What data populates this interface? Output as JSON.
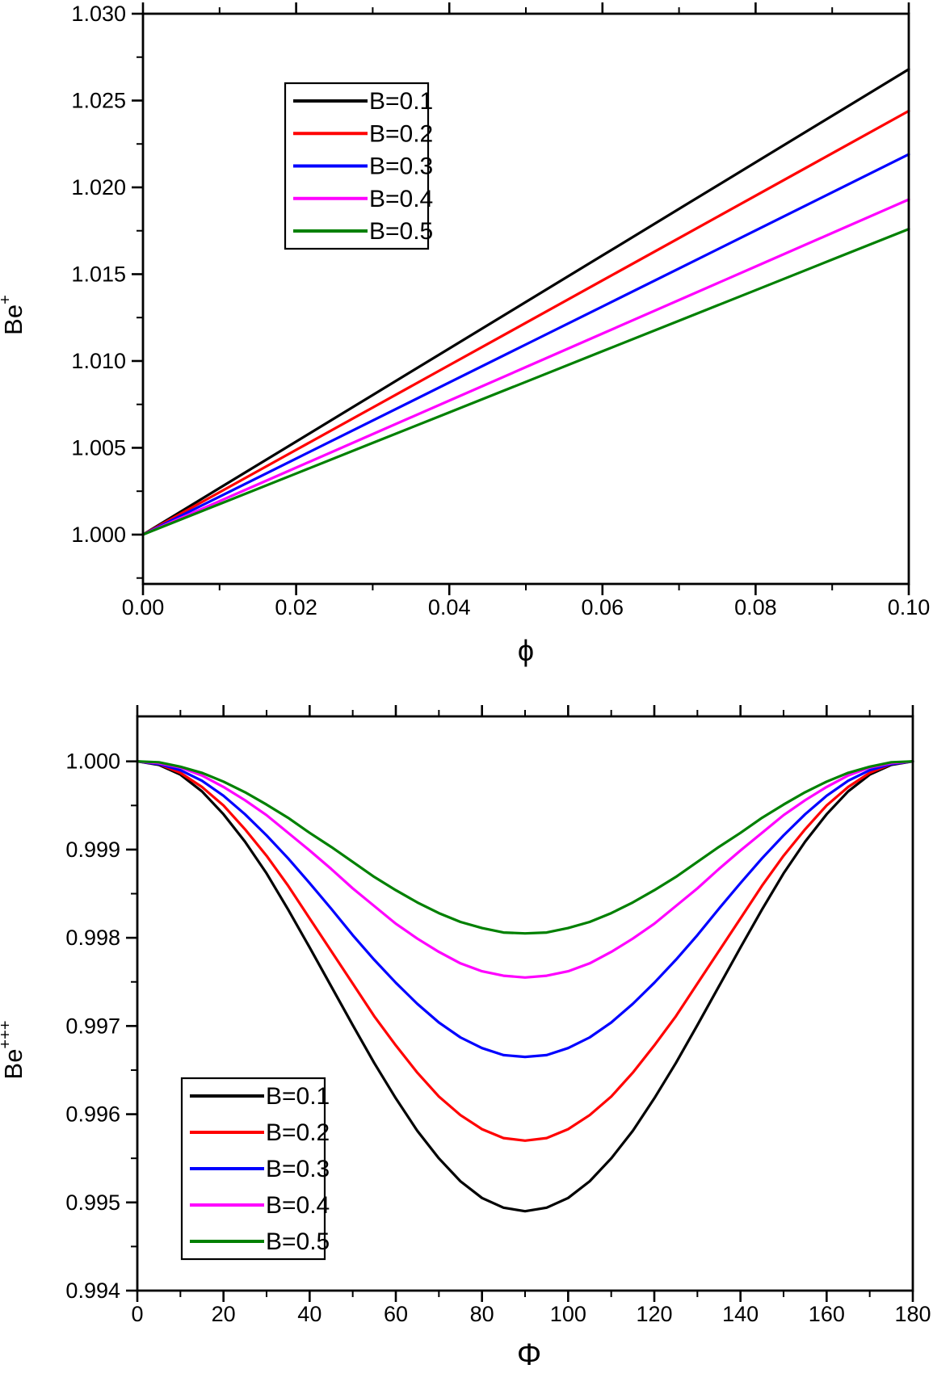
{
  "figure": {
    "background": "#ffffff",
    "text_color": "#000000",
    "series_colors": [
      "#000000",
      "#ff0000",
      "#0000ff",
      "#ff00ff",
      "#008000"
    ]
  },
  "chart_data": [
    {
      "type": "line",
      "title": "",
      "xlabel": "ϕ",
      "ylabel_base": "Be",
      "ylabel_sup": "+",
      "xlim": [
        0,
        0.1
      ],
      "ylim": [
        0.99716,
        1.03
      ],
      "grid": false,
      "legend_position": "upper-left",
      "x_ticks": {
        "values": [
          0,
          0.02,
          0.04,
          0.06,
          0.08,
          0.1
        ],
        "labels": [
          "0.00",
          "0.02",
          "0.04",
          "0.06",
          "0.08",
          "0.10"
        ],
        "minor": [
          0.01,
          0.03,
          0.05,
          0.07,
          0.09
        ]
      },
      "y_ticks": {
        "values": [
          1.0,
          1.005,
          1.01,
          1.015,
          1.02,
          1.025,
          1.03
        ],
        "labels": [
          "1.000",
          "1.005",
          "1.010",
          "1.015",
          "1.020",
          "1.025",
          "1.030"
        ],
        "minor": [
          0.9975,
          1.0025,
          1.0075,
          1.0125,
          1.0175,
          1.0225,
          1.0275
        ]
      },
      "x": [
        0,
        0.01,
        0.02,
        0.03,
        0.04,
        0.05,
        0.06,
        0.07,
        0.08,
        0.09,
        0.1
      ],
      "series": [
        {
          "name": "B=0.1",
          "color": "#000000",
          "values": [
            1.0,
            1.00268,
            1.00536,
            1.00804,
            1.01072,
            1.0134,
            1.01608,
            1.01876,
            1.02144,
            1.02412,
            1.0268
          ]
        },
        {
          "name": "B=0.2",
          "color": "#ff0000",
          "values": [
            1.0,
            1.00244,
            1.00488,
            1.00732,
            1.00976,
            1.0122,
            1.01464,
            1.01708,
            1.01952,
            1.02196,
            1.0244
          ]
        },
        {
          "name": "B=0.3",
          "color": "#0000ff",
          "values": [
            1.0,
            1.00219,
            1.00438,
            1.00657,
            1.00876,
            1.01095,
            1.01314,
            1.01533,
            1.01752,
            1.01971,
            1.0219
          ]
        },
        {
          "name": "B=0.4",
          "color": "#ff00ff",
          "values": [
            1.0,
            1.00193,
            1.00386,
            1.00579,
            1.00772,
            1.00965,
            1.01158,
            1.01351,
            1.01544,
            1.01737,
            1.0193
          ]
        },
        {
          "name": "B=0.5",
          "color": "#008000",
          "values": [
            1.0,
            1.00176,
            1.00352,
            1.00528,
            1.00704,
            1.0088,
            1.01056,
            1.01232,
            1.01408,
            1.01584,
            1.0176
          ]
        }
      ]
    },
    {
      "type": "line",
      "title": "",
      "xlabel": "Φ",
      "ylabel_base": "Be",
      "ylabel_sup": "+++",
      "xlim": [
        0,
        180
      ],
      "ylim": [
        0.994,
        1.00051
      ],
      "grid": false,
      "legend_position": "lower-left",
      "x_ticks": {
        "values": [
          0,
          20,
          40,
          60,
          80,
          100,
          120,
          140,
          160,
          180
        ],
        "labels": [
          "0",
          "20",
          "40",
          "60",
          "80",
          "100",
          "120",
          "140",
          "160",
          "180"
        ],
        "minor": [
          10,
          30,
          50,
          70,
          90,
          110,
          130,
          150,
          170
        ]
      },
      "y_ticks": {
        "values": [
          0.994,
          0.995,
          0.996,
          0.997,
          0.998,
          0.999,
          1.0
        ],
        "labels": [
          "0.994",
          "0.995",
          "0.996",
          "0.997",
          "0.998",
          "0.999",
          "1.000"
        ],
        "minor": [
          0.9945,
          0.9955,
          0.9965,
          0.9975,
          0.9985,
          0.9995
        ]
      },
      "x": [
        0,
        5,
        10,
        15,
        20,
        25,
        30,
        35,
        40,
        45,
        50,
        55,
        60,
        65,
        70,
        75,
        80,
        85,
        90,
        95,
        100,
        105,
        110,
        115,
        120,
        125,
        130,
        135,
        140,
        145,
        150,
        155,
        160,
        165,
        170,
        175,
        180
      ],
      "series": [
        {
          "name": "B=0.1",
          "color": "#000000",
          "values": [
            1.0,
            0.99996,
            0.99985,
            0.99966,
            0.9994,
            0.99909,
            0.99873,
            0.99832,
            0.99789,
            0.99745,
            0.99701,
            0.99658,
            0.99618,
            0.99581,
            0.9955,
            0.99524,
            0.99505,
            0.99494,
            0.9949,
            0.99494,
            0.99505,
            0.99524,
            0.9955,
            0.99581,
            0.99618,
            0.99658,
            0.99701,
            0.99745,
            0.99789,
            0.99832,
            0.99873,
            0.99909,
            0.9994,
            0.99966,
            0.99985,
            0.99996,
            1.0
          ]
        },
        {
          "name": "B=0.2",
          "color": "#ff0000",
          "values": [
            1.0,
            0.99997,
            0.99987,
            0.99971,
            0.9995,
            0.99923,
            0.99893,
            0.99859,
            0.99822,
            0.99785,
            0.99748,
            0.99711,
            0.99678,
            0.99647,
            0.9962,
            0.99599,
            0.99583,
            0.99573,
            0.9957,
            0.99573,
            0.99583,
            0.99599,
            0.9962,
            0.99647,
            0.99678,
            0.99711,
            0.99748,
            0.99785,
            0.99822,
            0.99859,
            0.99893,
            0.99923,
            0.9995,
            0.99971,
            0.99987,
            0.99997,
            1.0
          ]
        },
        {
          "name": "B=0.3",
          "color": "#0000ff",
          "values": [
            1.0,
            0.99997,
            0.9999,
            0.99978,
            0.99961,
            0.9994,
            0.99916,
            0.9989,
            0.99862,
            0.99833,
            0.99803,
            0.99775,
            0.99749,
            0.99725,
            0.99704,
            0.99687,
            0.99675,
            0.99667,
            0.99665,
            0.99667,
            0.99675,
            0.99687,
            0.99704,
            0.99725,
            0.99749,
            0.99775,
            0.99803,
            0.99833,
            0.99862,
            0.9989,
            0.99916,
            0.9994,
            0.99961,
            0.99978,
            0.9999,
            0.99997,
            1.0
          ]
        },
        {
          "name": "B=0.4",
          "color": "#ff00ff",
          "values": [
            1.0,
            0.99998,
            0.99993,
            0.99984,
            0.99971,
            0.99956,
            0.99939,
            0.99919,
            0.99899,
            0.99878,
            0.99856,
            0.99836,
            0.99816,
            0.99799,
            0.99784,
            0.99771,
            0.99762,
            0.99757,
            0.99755,
            0.99757,
            0.99762,
            0.99771,
            0.99784,
            0.99799,
            0.99816,
            0.99836,
            0.99856,
            0.99878,
            0.99899,
            0.99919,
            0.99939,
            0.99956,
            0.99971,
            0.99984,
            0.99993,
            0.99998,
            1.0
          ]
        },
        {
          "name": "B=0.5",
          "color": "#008000",
          "values": [
            1.0,
            0.99999,
            0.99994,
            0.99987,
            0.99977,
            0.99965,
            0.99951,
            0.99936,
            0.99919,
            0.99903,
            0.99886,
            0.99869,
            0.99854,
            0.9984,
            0.99828,
            0.99818,
            0.99811,
            0.99806,
            0.99805,
            0.99806,
            0.99811,
            0.99818,
            0.99828,
            0.9984,
            0.99854,
            0.99869,
            0.99886,
            0.99903,
            0.99919,
            0.99936,
            0.99951,
            0.99965,
            0.99977,
            0.99987,
            0.99994,
            0.99999,
            1.0
          ]
        }
      ]
    }
  ]
}
